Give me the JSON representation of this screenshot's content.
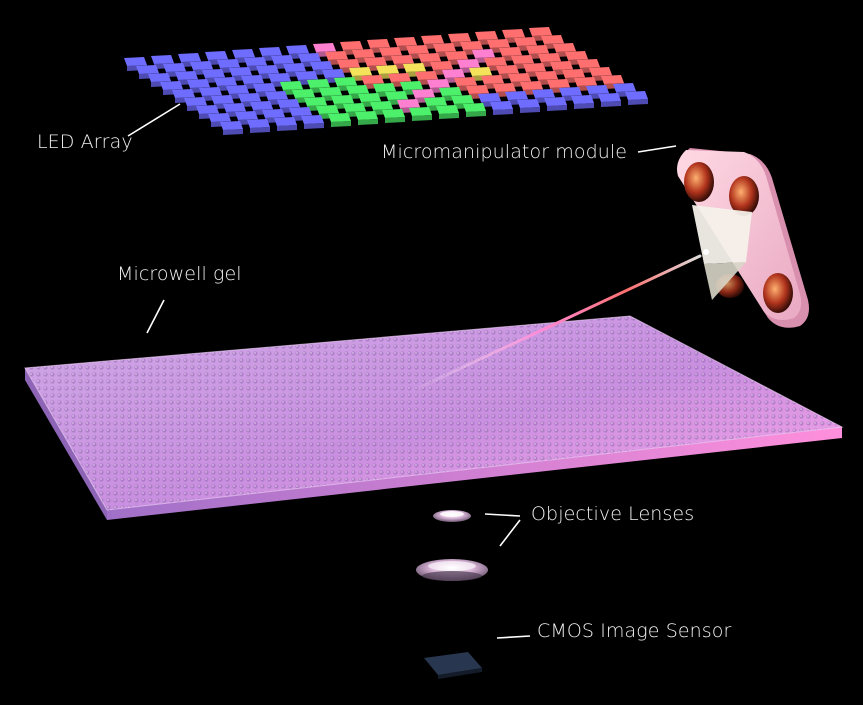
{
  "labels": {
    "led_array": "LED Array",
    "micromanipulator": "Micromanipulator module",
    "microwell_gel": "Microwell gel",
    "objective_lenses": "Objective Lenses",
    "cmos_sensor": "CMOS Image Sensor"
  },
  "colors": {
    "background": "#000000",
    "led_blue": "#6f6dff",
    "led_green": "#4cf06a",
    "led_red": "#ff6f6f",
    "led_yellow": "#f4e35a",
    "led_pink": "#ff7fd0",
    "gel": "#c890e6",
    "module": "#f2c6d3",
    "sensor": "#1e2a3d",
    "text": "#f2f2f2"
  }
}
